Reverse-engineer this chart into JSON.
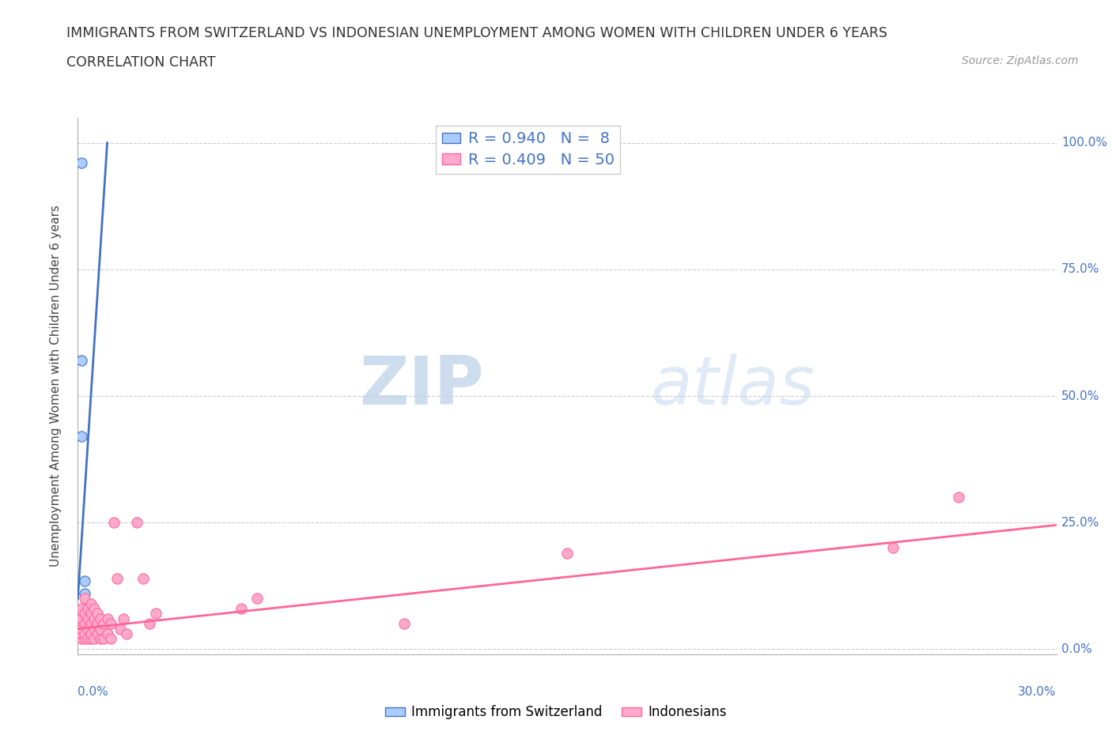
{
  "title": "IMMIGRANTS FROM SWITZERLAND VS INDONESIAN UNEMPLOYMENT AMONG WOMEN WITH CHILDREN UNDER 6 YEARS",
  "subtitle": "CORRELATION CHART",
  "source": "Source: ZipAtlas.com",
  "xlabel_max": "30.0%",
  "xlabel_min": "0.0%",
  "ylabel": "Unemployment Among Women with Children Under 6 years",
  "ytick_labels": [
    "0.0%",
    "25.0%",
    "50.0%",
    "75.0%",
    "100.0%"
  ],
  "ytick_vals": [
    0.0,
    0.25,
    0.5,
    0.75,
    1.0
  ],
  "xlim": [
    0.0,
    0.3
  ],
  "ylim": [
    -0.01,
    1.05
  ],
  "swiss_color": "#aaccff",
  "swiss_line_color": "#4472c4",
  "indonesian_color": "#ffaacc",
  "indonesian_line_color": "#ff6699",
  "swiss_R": 0.94,
  "swiss_N": 8,
  "indonesian_R": 0.409,
  "indonesian_N": 50,
  "swiss_scatter_x": [
    0.001,
    0.001,
    0.001,
    0.002,
    0.002,
    0.003,
    0.004,
    0.005
  ],
  "swiss_scatter_y": [
    0.96,
    0.57,
    0.42,
    0.135,
    0.11,
    0.08,
    0.08,
    0.075
  ],
  "swiss_line_x": [
    0.0,
    0.009
  ],
  "swiss_line_y": [
    0.1,
    1.0
  ],
  "indonesian_scatter_x": [
    0.001,
    0.001,
    0.001,
    0.001,
    0.001,
    0.002,
    0.002,
    0.002,
    0.002,
    0.002,
    0.003,
    0.003,
    0.003,
    0.003,
    0.004,
    0.004,
    0.004,
    0.004,
    0.004,
    0.005,
    0.005,
    0.005,
    0.005,
    0.006,
    0.006,
    0.006,
    0.007,
    0.007,
    0.007,
    0.008,
    0.008,
    0.009,
    0.009,
    0.01,
    0.01,
    0.011,
    0.012,
    0.013,
    0.014,
    0.015,
    0.018,
    0.02,
    0.022,
    0.024,
    0.05,
    0.055,
    0.1,
    0.15,
    0.25,
    0.27
  ],
  "indonesian_scatter_y": [
    0.02,
    0.03,
    0.04,
    0.06,
    0.08,
    0.02,
    0.03,
    0.05,
    0.07,
    0.1,
    0.02,
    0.04,
    0.06,
    0.08,
    0.02,
    0.03,
    0.05,
    0.07,
    0.09,
    0.02,
    0.04,
    0.06,
    0.08,
    0.03,
    0.05,
    0.07,
    0.02,
    0.04,
    0.06,
    0.02,
    0.05,
    0.03,
    0.06,
    0.02,
    0.05,
    0.25,
    0.14,
    0.04,
    0.06,
    0.03,
    0.25,
    0.14,
    0.05,
    0.07,
    0.08,
    0.1,
    0.05,
    0.19,
    0.2,
    0.3
  ],
  "indonesian_line_x": [
    0.0,
    0.3
  ],
  "indonesian_line_y": [
    0.04,
    0.245
  ],
  "watermark_zip": "ZIP",
  "watermark_atlas": "atlas",
  "bg_color": "#ffffff",
  "grid_color": "#cccccc",
  "legend_label_swiss": "R = 0.940   N =  8",
  "legend_label_indo": "R = 0.409   N = 50"
}
